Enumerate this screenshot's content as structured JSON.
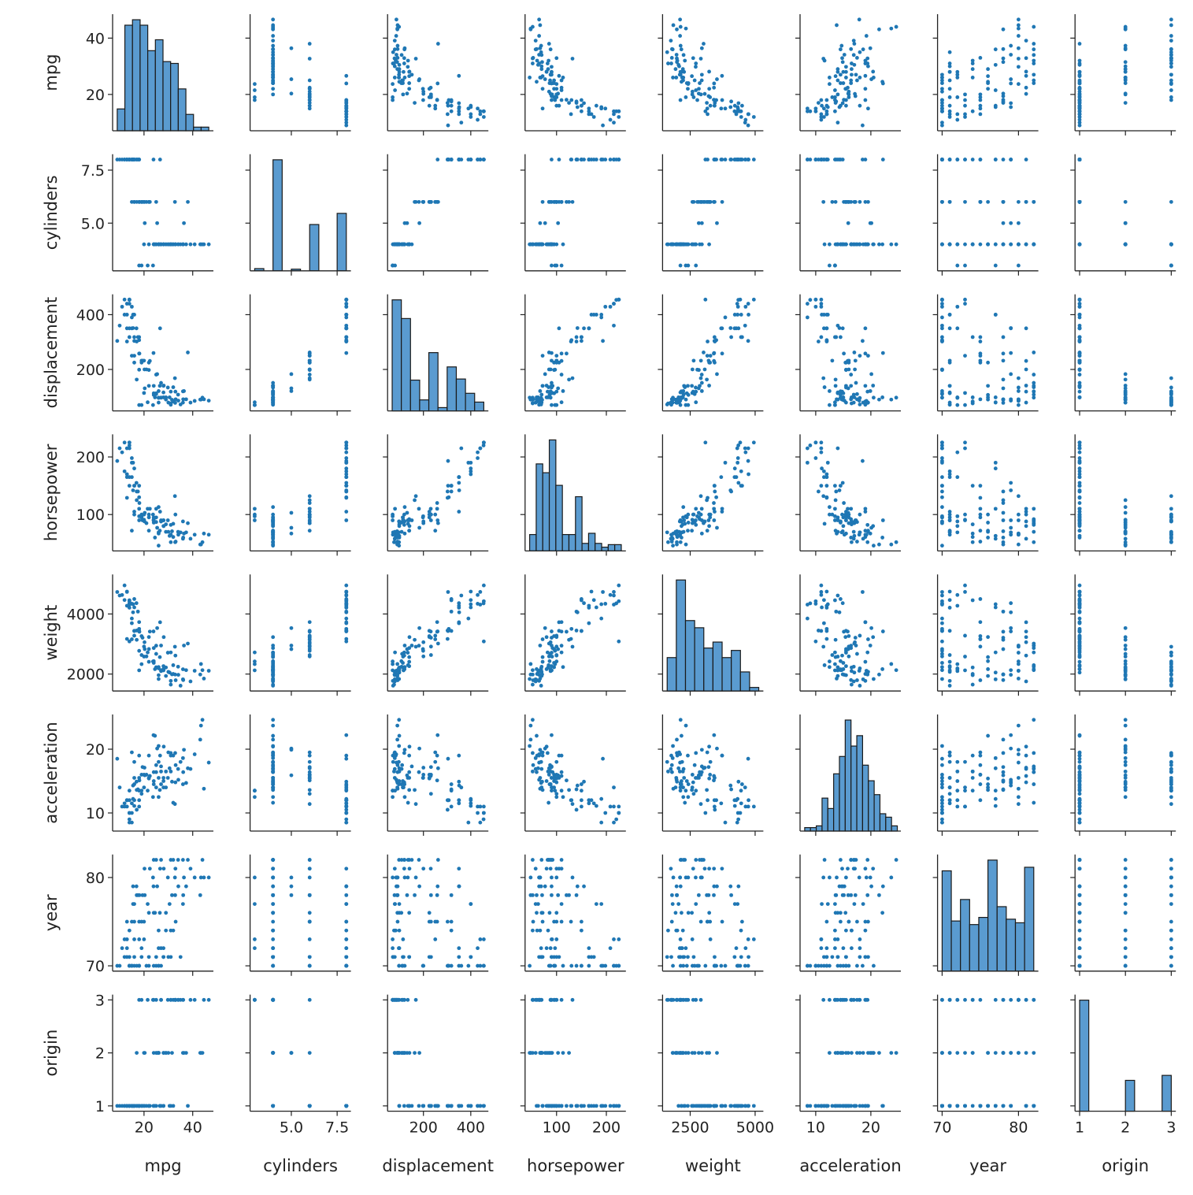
{
  "chart_data": {
    "type": "scatter",
    "kind": "pairplot",
    "variables": [
      "mpg",
      "cylinders",
      "displacement",
      "horsepower",
      "weight",
      "acceleration",
      "year",
      "origin"
    ],
    "axis_limits": {
      "mpg": [
        7.1,
        48.5
      ],
      "cylinders": [
        2.75,
        8.25
      ],
      "displacement": [
        48.65,
        474.35
      ],
      "horsepower": [
        36.8,
        239.2
      ],
      "weight": [
        1436,
        5317
      ],
      "acceleration": [
        7.16,
        25.44
      ],
      "year": [
        69.4,
        82.6
      ],
      "origin": [
        0.9,
        3.1
      ]
    },
    "x_ticks": {
      "mpg": [
        "20",
        "40"
      ],
      "cylinders": [
        "5.0",
        "7.5"
      ],
      "displacement": [
        "200",
        "400"
      ],
      "horsepower": [
        "100",
        "200"
      ],
      "weight": [
        "2500",
        "5000"
      ],
      "acceleration": [
        "10",
        "20"
      ],
      "year": [
        "70",
        "80"
      ],
      "origin": [
        "1",
        "2",
        "3"
      ]
    },
    "y_ticks": {
      "mpg": [
        "20",
        "40"
      ],
      "cylinders": [
        "5.0",
        "7.5"
      ],
      "displacement": [
        "200",
        "400"
      ],
      "horsepower": [
        "100",
        "200"
      ],
      "weight": [
        "2000",
        "4000"
      ],
      "acceleration": [
        "10",
        "20"
      ],
      "year": [
        "70",
        "80"
      ],
      "origin": [
        "1",
        "2",
        "3"
      ]
    },
    "histograms": {
      "mpg": {
        "range": [
          9,
          46.6
        ],
        "counts": [
          12,
          58,
          61,
          58,
          44,
          50,
          38,
          37,
          23,
          9,
          2,
          2
        ]
      },
      "cylinders": {
        "range": [
          3,
          8
        ],
        "counts": [
          4,
          0,
          199,
          0,
          3,
          0,
          83,
          0,
          0,
          103
        ]
      },
      "displacement": {
        "range": [
          68,
          455
        ],
        "counts": [
          101,
          84,
          28,
          10,
          53,
          3,
          40,
          29,
          16,
          8
        ]
      },
      "horsepower": {
        "range": [
          46,
          230
        ],
        "counts": [
          13,
          69,
          62,
          88,
          52,
          13,
          13,
          43,
          6,
          14,
          6,
          3,
          5,
          5
        ]
      },
      "weight": {
        "range": [
          1613,
          5140
        ],
        "counts": [
          28,
          93,
          59,
          53,
          36,
          41,
          28,
          34,
          16,
          3
        ]
      },
      "acceleration": {
        "range": [
          8,
          24.8
        ],
        "counts": [
          2,
          2,
          3,
          19,
          13,
          33,
          43,
          64,
          49,
          55,
          38,
          29,
          21,
          10,
          8,
          3
        ]
      },
      "year": {
        "range": [
          70,
          82
        ],
        "counts": [
          56,
          28,
          40,
          26,
          30,
          62,
          36,
          29,
          27,
          58
        ]
      },
      "origin": {
        "range": [
          1,
          3
        ],
        "counts": [
          245,
          0,
          0,
          0,
          0,
          68,
          0,
          0,
          0,
          79
        ]
      }
    },
    "columns": [
      "mpg",
      "cylinders",
      "displacement",
      "horsepower",
      "weight",
      "acceleration",
      "year",
      "origin"
    ],
    "rows": [
      [
        18,
        8,
        307,
        130,
        3504,
        12,
        70,
        1
      ],
      [
        15,
        8,
        350,
        165,
        3693,
        11.5,
        70,
        1
      ],
      [
        18,
        8,
        318,
        150,
        3436,
        11,
        70,
        1
      ],
      [
        16,
        8,
        304,
        150,
        3433,
        12,
        70,
        1
      ],
      [
        17,
        8,
        302,
        140,
        3449,
        10.5,
        70,
        1
      ],
      [
        15,
        8,
        429,
        198,
        4341,
        10,
        70,
        1
      ],
      [
        14,
        8,
        454,
        220,
        4354,
        9,
        70,
        1
      ],
      [
        14,
        8,
        440,
        215,
        4312,
        8.5,
        70,
        1
      ],
      [
        14,
        8,
        455,
        225,
        4425,
        10,
        70,
        1
      ],
      [
        15,
        8,
        390,
        190,
        3850,
        8.5,
        70,
        1
      ],
      [
        14,
        8,
        455,
        225,
        3086,
        10,
        70,
        1
      ],
      [
        24,
        4,
        113,
        95,
        2372,
        15,
        70,
        3
      ],
      [
        22,
        6,
        198,
        95,
        2833,
        15.5,
        70,
        1
      ],
      [
        18,
        6,
        199,
        97,
        2774,
        15.5,
        70,
        1
      ],
      [
        21,
        6,
        200,
        85,
        2587,
        16,
        70,
        1
      ],
      [
        27,
        4,
        97,
        88,
        2130,
        14.5,
        70,
        3
      ],
      [
        26,
        4,
        97,
        46,
        1835,
        20.5,
        70,
        2
      ],
      [
        25,
        4,
        110,
        87,
        2672,
        17.5,
        70,
        2
      ],
      [
        26,
        4,
        121,
        113,
        2234,
        12.5,
        70,
        2
      ],
      [
        10,
        8,
        360,
        215,
        4615,
        14,
        70,
        1
      ],
      [
        9,
        8,
        304,
        193,
        4732,
        18.5,
        70,
        1
      ],
      [
        28,
        4,
        140,
        90,
        2264,
        15.5,
        71,
        1
      ],
      [
        25,
        4,
        113,
        95,
        2228,
        14,
        71,
        3
      ],
      [
        19,
        6,
        232,
        100,
        2634,
        13,
        71,
        1
      ],
      [
        16,
        6,
        225,
        105,
        3439,
        15.5,
        71,
        1
      ],
      [
        14,
        8,
        350,
        165,
        4209,
        12,
        71,
        1
      ],
      [
        31,
        4,
        71,
        65,
        1773,
        19,
        71,
        3
      ],
      [
        35,
        4,
        72,
        69,
        1613,
        18,
        71,
        3
      ],
      [
        12,
        8,
        400,
        175,
        4464,
        11.5,
        71,
        1
      ],
      [
        13,
        8,
        400,
        170,
        4746,
        12,
        71,
        1
      ],
      [
        22,
        4,
        140,
        72,
        2408,
        19,
        71,
        1
      ],
      [
        19,
        3,
        70,
        97,
        2330,
        13.5,
        72,
        3
      ],
      [
        13,
        8,
        350,
        165,
        4274,
        12,
        72,
        1
      ],
      [
        28,
        4,
        98,
        80,
        2164,
        15,
        72,
        1
      ],
      [
        27,
        4,
        97,
        88,
        2100,
        16.5,
        72,
        3
      ],
      [
        11,
        8,
        429,
        208,
        4633,
        11,
        72,
        1
      ],
      [
        12,
        8,
        455,
        225,
        4951,
        11,
        73,
        1
      ],
      [
        18,
        3,
        70,
        90,
        2124,
        13.5,
        73,
        3
      ],
      [
        13,
        8,
        440,
        215,
        4735,
        11,
        73,
        1
      ],
      [
        16,
        6,
        250,
        100,
        3278,
        18,
        73,
        1
      ],
      [
        26,
        4,
        96,
        69,
        2189,
        18,
        72,
        2
      ],
      [
        20,
        4,
        114,
        91,
        2582,
        14,
        73,
        2
      ],
      [
        29,
        4,
        98,
        83,
        2219,
        16.5,
        74,
        2
      ],
      [
        31,
        4,
        76,
        52,
        1649,
        16.5,
        74,
        3
      ],
      [
        32,
        4,
        83,
        61,
        2003,
        19,
        74,
        3
      ],
      [
        26,
        4,
        79,
        67,
        1963,
        15.5,
        74,
        2
      ],
      [
        16,
        8,
        318,
        150,
        4498,
        14.5,
        75,
        1
      ],
      [
        15,
        6,
        250,
        72,
        3158,
        19.5,
        75,
        1
      ],
      [
        18,
        6,
        258,
        110,
        3730,
        19,
        75,
        1
      ],
      [
        33,
        4,
        91,
        53,
        1795,
        17.5,
        75,
        3
      ],
      [
        24,
        4,
        107,
        86,
        2430,
        14.5,
        76,
        2
      ],
      [
        29,
        4,
        90,
        70,
        1937,
        14,
        76,
        2
      ],
      [
        17.5,
        8,
        318,
        140,
        4080,
        13.7,
        78,
        1
      ],
      [
        36,
        4,
        79,
        58,
        1825,
        18.6,
        77,
        2
      ],
      [
        21.5,
        3,
        80,
        110,
        2720,
        13.5,
        77,
        3
      ],
      [
        30.5,
        4,
        98,
        63,
        2051,
        17,
        77,
        1
      ],
      [
        15.5,
        8,
        400,
        190,
        4325,
        12.2,
        77,
        1
      ],
      [
        20.3,
        5,
        131,
        103,
        2830,
        15.9,
        78,
        2
      ],
      [
        43.1,
        4,
        90,
        48,
        1985,
        21.5,
        78,
        2
      ],
      [
        36.1,
        4,
        91,
        60,
        1800,
        16.4,
        78,
        3
      ],
      [
        19.4,
        6,
        232,
        90,
        3210,
        17.2,
        78,
        1
      ],
      [
        25.4,
        5,
        183,
        77,
        3530,
        20.1,
        79,
        2
      ],
      [
        34.1,
        4,
        86,
        65,
        1975,
        15.2,
        79,
        3
      ],
      [
        23.9,
        8,
        260,
        90,
        3420,
        22.2,
        79,
        1
      ],
      [
        15.5,
        8,
        351,
        142,
        4054,
        14.3,
        79,
        1
      ],
      [
        37.3,
        4,
        91,
        69,
        2130,
        14.7,
        79,
        2
      ],
      [
        46.6,
        4,
        86,
        65,
        2110,
        17.9,
        80,
        3
      ],
      [
        44.6,
        4,
        91,
        67,
        1850,
        13.8,
        80,
        3
      ],
      [
        43.4,
        4,
        90,
        48,
        2335,
        23.7,
        80,
        2
      ],
      [
        36.4,
        5,
        121,
        67,
        2950,
        19.9,
        80,
        2
      ],
      [
        23.7,
        3,
        70,
        100,
        2420,
        12.5,
        80,
        3
      ],
      [
        32.7,
        6,
        168,
        132,
        2910,
        11.4,
        80,
        3
      ],
      [
        40.8,
        4,
        85,
        65,
        2110,
        19.2,
        80,
        3
      ],
      [
        26.6,
        8,
        350,
        105,
        3725,
        19,
        81,
        1
      ],
      [
        39.1,
        4,
        79,
        58,
        1755,
        16.9,
        81,
        3
      ],
      [
        28.1,
        4,
        141,
        80,
        3230,
        20.4,
        81,
        2
      ],
      [
        22.4,
        6,
        231,
        110,
        3415,
        15.8,
        81,
        1
      ],
      [
        32.9,
        4,
        119,
        100,
        2615,
        14.8,
        81,
        3
      ],
      [
        27,
        4,
        151,
        90,
        2950,
        17.3,
        82,
        1
      ],
      [
        44,
        4,
        97,
        52,
        2130,
        24.6,
        82,
        2
      ],
      [
        32,
        4,
        135,
        84,
        2295,
        11.6,
        82,
        1
      ],
      [
        38,
        6,
        262,
        85,
        3015,
        17,
        82,
        1
      ],
      [
        31,
        4,
        119,
        82,
        2720,
        19.4,
        82,
        1
      ],
      [
        36,
        4,
        120,
        88,
        2160,
        14.5,
        82,
        3
      ],
      [
        24,
        4,
        140,
        92,
        2865,
        16.4,
        82,
        1
      ],
      [
        34,
        4,
        108,
        70,
        2245,
        16.9,
        82,
        3
      ],
      [
        17,
        6,
        163,
        125,
        3140,
        13.6,
        78,
        2
      ],
      [
        16.9,
        8,
        350,
        155,
        4360,
        14.9,
        79,
        1
      ],
      [
        18.1,
        6,
        258,
        120,
        3410,
        15.1,
        78,
        1
      ],
      [
        20.2,
        6,
        200,
        88,
        3060,
        17.1,
        81,
        1
      ],
      [
        29.8,
        4,
        134,
        90,
        2711,
        15.5,
        80,
        3
      ],
      [
        25,
        6,
        181,
        110,
        2945,
        16.4,
        82,
        1
      ],
      [
        13,
        8,
        302,
        129,
        3169,
        12,
        75,
        1
      ],
      [
        14,
        8,
        318,
        150,
        4457,
        13.5,
        74,
        1
      ],
      [
        19,
        6,
        225,
        95,
        3264,
        16,
        75,
        1
      ],
      [
        22,
        6,
        225,
        100,
        3233,
        15.4,
        76,
        1
      ],
      [
        28,
        4,
        116,
        90,
        2123,
        14,
        71,
        2
      ],
      [
        30,
        4,
        79,
        70,
        2074,
        19.5,
        71,
        2
      ],
      [
        20,
        6,
        232,
        100,
        2914,
        16,
        75,
        1
      ],
      [
        16,
        8,
        400,
        180,
        4220,
        11.1,
        77,
        1
      ],
      [
        24.5,
        4,
        98,
        60,
        2164,
        22.1,
        76,
        1
      ],
      [
        26.5,
        4,
        140,
        72,
        2565,
        13.6,
        76,
        1
      ],
      [
        32.8,
        4,
        78,
        52,
        1985,
        19.4,
        78,
        3
      ],
      [
        31.5,
        4,
        89,
        71,
        1990,
        14.9,
        78,
        2
      ]
    ],
    "colors": {
      "points": "#1f77b4",
      "bars": "#5a9bd0",
      "bar_edge": "#1a1a1a",
      "axis": "#222222"
    }
  }
}
